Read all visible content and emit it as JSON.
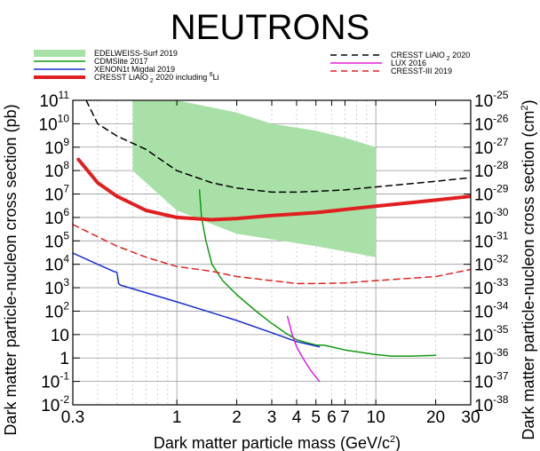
{
  "chart_data": {
    "type": "line",
    "title": "NEUTRONS",
    "xlabel": "Dark matter particle mass (GeV/c",
    "xlabel_sup": "2",
    "xlabel_end": ")",
    "ylabel_left": "Dark matter particle-nucleon cross section (pb)",
    "ylabel_right": "Dark matter particle-nucleon cross section (cm",
    "ylabel_right_sup": "2",
    "ylabel_right_end": ")",
    "xscale": "log",
    "yscale": "log",
    "xlim": [
      0.3,
      30
    ],
    "ylim": [
      0.01,
      100000000000
    ],
    "x_ticks": [
      {
        "v": 0.3,
        "label": "0.3"
      },
      {
        "v": 1,
        "label": "1"
      },
      {
        "v": 2,
        "label": "2"
      },
      {
        "v": 3,
        "label": "3"
      },
      {
        "v": 4,
        "label": "4"
      },
      {
        "v": 5,
        "label": "5"
      },
      {
        "v": 6,
        "label": "6"
      },
      {
        "v": 7,
        "label": "7"
      },
      {
        "v": 10,
        "label": "10"
      },
      {
        "v": 20,
        "label": "20"
      },
      {
        "v": 30,
        "label": "30"
      }
    ],
    "y_ticks_left": [
      {
        "v": 0.01,
        "base": "10",
        "exp": "-2"
      },
      {
        "v": 0.1,
        "base": "10",
        "exp": "-1"
      },
      {
        "v": 1,
        "base": "1",
        "exp": ""
      },
      {
        "v": 10,
        "base": "10",
        "exp": ""
      },
      {
        "v": 100,
        "base": "10",
        "exp": "2"
      },
      {
        "v": 1000,
        "base": "10",
        "exp": "3"
      },
      {
        "v": 10000,
        "base": "10",
        "exp": "4"
      },
      {
        "v": 100000,
        "base": "10",
        "exp": "5"
      },
      {
        "v": 1000000,
        "base": "10",
        "exp": "6"
      },
      {
        "v": 10000000,
        "base": "10",
        "exp": "7"
      },
      {
        "v": 100000000,
        "base": "10",
        "exp": "8"
      },
      {
        "v": 1000000000,
        "base": "10",
        "exp": "9"
      },
      {
        "v": 10000000000,
        "base": "10",
        "exp": "10"
      },
      {
        "v": 100000000000,
        "base": "10",
        "exp": "11"
      }
    ],
    "y_ticks_right": [
      {
        "v": 0.01,
        "base": "10",
        "exp": "-38"
      },
      {
        "v": 0.1,
        "base": "10",
        "exp": "-37"
      },
      {
        "v": 1,
        "base": "10",
        "exp": "-36"
      },
      {
        "v": 10,
        "base": "10",
        "exp": "-35"
      },
      {
        "v": 100,
        "base": "10",
        "exp": "-34"
      },
      {
        "v": 1000,
        "base": "10",
        "exp": "-33"
      },
      {
        "v": 10000,
        "base": "10",
        "exp": "-32"
      },
      {
        "v": 100000,
        "base": "10",
        "exp": "-31"
      },
      {
        "v": 1000000,
        "base": "10",
        "exp": "-30"
      },
      {
        "v": 10000000,
        "base": "10",
        "exp": "-29"
      },
      {
        "v": 100000000,
        "base": "10",
        "exp": "-28"
      },
      {
        "v": 1000000000,
        "base": "10",
        "exp": "-27"
      },
      {
        "v": 10000000000,
        "base": "10",
        "exp": "-26"
      },
      {
        "v": 100000000000,
        "base": "10",
        "exp": "-25"
      }
    ],
    "grid": true,
    "band": {
      "name": "EDELWEISS-Surf 2019",
      "color": "#a8e0a8",
      "x": [
        0.6,
        0.6,
        1,
        2,
        5,
        10,
        10,
        7,
        5,
        3,
        2,
        1,
        0.7,
        0.6
      ],
      "y": [
        100000000000,
        100000000,
        2000000,
        200000,
        60000,
        20000,
        1000000000,
        2500000000,
        5000000000,
        10000000000,
        30000000000,
        100000000000,
        100000000000,
        100000000000
      ]
    },
    "series": [
      {
        "name": "CDMSlite 2017",
        "color": "#129a12",
        "width": 1.5,
        "dash": "",
        "x": [
          1.3,
          1.33,
          1.4,
          1.5,
          1.7,
          2,
          2.5,
          3,
          3.5,
          4,
          4.5,
          5,
          5.5,
          7,
          10,
          12,
          15,
          20
        ],
        "y": [
          15000000,
          1000000,
          100000,
          10000,
          2000,
          500,
          100,
          30,
          12,
          6,
          4.5,
          3.6,
          3.5,
          2.2,
          1.4,
          1.2,
          1.2,
          1.3
        ]
      },
      {
        "name": "XENON1t Migdal 2019",
        "color": "#1a2fd0",
        "width": 1.5,
        "dash": "",
        "x": [
          0.3,
          0.4,
          0.48,
          0.5,
          0.51,
          0.52,
          1,
          2,
          3,
          4,
          5.2
        ],
        "y": [
          30000,
          10000,
          5000,
          4500,
          1500,
          1300,
          250,
          40,
          12,
          5,
          3
        ]
      },
      {
        "name": "CRESST LiAlO",
        "color": "#e02020",
        "width": 4,
        "dash": "",
        "x": [
          0.32,
          0.4,
          0.5,
          0.7,
          1,
          1.5,
          2,
          3,
          5,
          10,
          20,
          30
        ],
        "y": [
          300000000,
          30000000,
          8000000,
          2000000,
          1000000,
          800000,
          900000,
          1200000,
          1600000,
          3000000,
          5500000,
          8000000
        ]
      },
      {
        "name": "CRESST LiAlO",
        "color": "#000000",
        "width": 1.5,
        "dash": "7,5",
        "x": [
          0.35,
          0.4,
          0.5,
          0.7,
          1,
          1.5,
          2,
          3,
          4,
          5,
          7,
          10,
          20,
          30
        ],
        "y": [
          100000000000,
          10000000000,
          3000000000,
          800000000,
          100000000,
          30000000,
          18000000,
          12000000,
          12000000,
          13000000,
          15000000,
          20000000,
          35000000,
          50000000
        ]
      },
      {
        "name": "LUX 2016",
        "color": "#e020e0",
        "width": 1.5,
        "dash": "",
        "x": [
          3.6,
          3.8,
          4,
          4.3,
          4.7,
          5.2
        ],
        "y": [
          60,
          10,
          3,
          1,
          0.3,
          0.1
        ]
      },
      {
        "name": "CRESST-III 2019",
        "color": "#e02020",
        "width": 1.5,
        "dash": "7,5",
        "x": [
          0.3,
          0.4,
          0.5,
          0.7,
          1,
          1.5,
          2,
          3,
          4,
          5,
          7,
          10,
          20,
          30
        ],
        "y": [
          500000,
          150000,
          60000,
          20000,
          8000,
          5000,
          3000,
          2000,
          1500,
          1500,
          1600,
          2000,
          3000,
          6000
        ]
      }
    ],
    "legend": [
      {
        "label": "EDELWEISS-Surf 2019",
        "type": "band",
        "color": "#a8e0a8",
        "sup": "",
        "tail": ""
      },
      {
        "label": "CDMSlite 2017",
        "type": "line",
        "color": "#129a12",
        "dash": "",
        "width": 1.5,
        "sup": "",
        "tail": ""
      },
      {
        "label": "XENON1t Migdal 2019",
        "type": "line",
        "color": "#1a2fd0",
        "dash": "",
        "width": 1.5,
        "sup": "",
        "tail": ""
      },
      {
        "label": "CRESST LiAlO",
        "type": "line",
        "color": "#e02020",
        "dash": "",
        "width": 4,
        "sub": "2",
        "tail": " 2020 including ",
        "sup": "6",
        "tail2": "Li"
      },
      {
        "label": "CRESST LiAlO",
        "type": "line",
        "color": "#000000",
        "dash": "7,5",
        "width": 1.5,
        "sub": "2",
        "tail": " 2020",
        "sup": "",
        "tail2": ""
      },
      {
        "label": "LUX 2016",
        "type": "line",
        "color": "#e020e0",
        "dash": "",
        "width": 1.5,
        "sup": "",
        "tail": ""
      },
      {
        "label": "CRESST-III 2019",
        "type": "line",
        "color": "#e02020",
        "dash": "7,5",
        "width": 1.5,
        "sup": "",
        "tail": ""
      }
    ]
  }
}
